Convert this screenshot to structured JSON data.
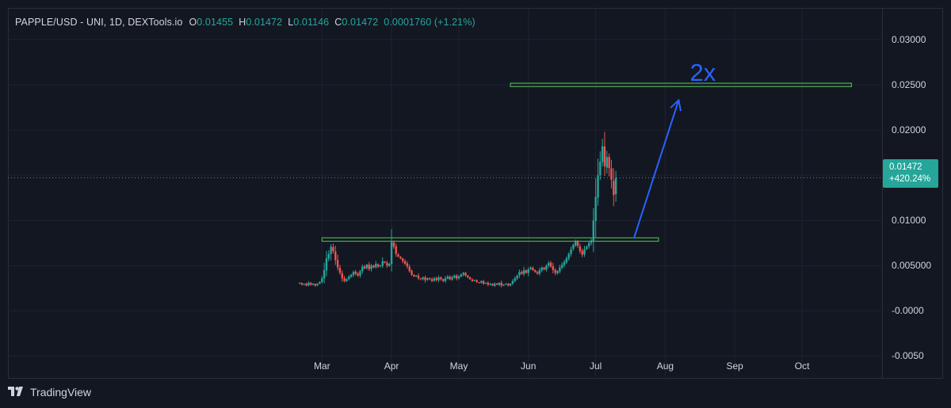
{
  "legend": {
    "symbol": "PAPPLE/USD - UNI, 1D, DEXTools.io",
    "open_label": "O",
    "open": "0.01455",
    "high_label": "H",
    "high": "0.01472",
    "low_label": "L",
    "low": "0.01146",
    "close_label": "C",
    "close": "0.01472",
    "change": "0.0001760 (+1.21%)"
  },
  "last_price": {
    "price": "0.01472",
    "change_pct": "+420.24%"
  },
  "annotation": {
    "text": "2x"
  },
  "footer": {
    "brand": "TradingView"
  },
  "colors": {
    "up": "#26a69a",
    "down": "#ef5350",
    "box": "#4caf50",
    "arrow": "#2962ff",
    "background": "#131722"
  },
  "chart_data": {
    "type": "candlestick",
    "y_ticks": [
      "0.03000",
      "0.02500",
      "0.02000",
      "0.01500",
      "0.01000",
      "0.005000",
      "-0.0000",
      "-0.0050"
    ],
    "y_tick_values": [
      0.03,
      0.025,
      0.02,
      0.015,
      0.01,
      0.005,
      0.0,
      -0.005
    ],
    "ylim": [
      -0.0075,
      0.0335
    ],
    "x_ticks": [
      "Mar",
      "Apr",
      "May",
      "Jun",
      "Jul",
      "Aug",
      "Sep",
      "Oct"
    ],
    "x_tick_days": [
      0,
      31,
      61,
      92,
      122,
      153,
      184,
      214
    ],
    "x_start_day": -10,
    "xlim_days": [
      -140,
      250
    ],
    "last_price_line": 0.01472,
    "resistance_zone": {
      "from_day": 0,
      "to_day": 150,
      "low": 0.0077,
      "high": 0.0079
    },
    "target_zone": {
      "from_day": 84,
      "to_day": 236,
      "low": 0.0248,
      "high": 0.025
    },
    "arrow": {
      "from": [
        139,
        0.008
      ],
      "to": [
        159,
        0.0233
      ]
    },
    "closes": [
      0.0031,
      0.0029,
      0.003,
      0.0028,
      0.0031,
      0.0029,
      0.003,
      0.0028,
      0.003,
      0.0032,
      0.0036,
      0.0045,
      0.0058,
      0.0063,
      0.0071,
      0.0066,
      0.0056,
      0.0048,
      0.0042,
      0.0036,
      0.0033,
      0.0035,
      0.0038,
      0.004,
      0.0043,
      0.0041,
      0.0039,
      0.0044,
      0.0049,
      0.0047,
      0.0051,
      0.0046,
      0.005,
      0.0048,
      0.0052,
      0.0049,
      0.005,
      0.0055,
      0.0053,
      0.005,
      0.0052,
      0.0076,
      0.0071,
      0.0063,
      0.006,
      0.0058,
      0.0055,
      0.0052,
      0.0049,
      0.0044,
      0.004,
      0.0038,
      0.0039,
      0.0036,
      0.0035,
      0.0037,
      0.0034,
      0.0036,
      0.0035,
      0.0033,
      0.0036,
      0.0034,
      0.0037,
      0.0035,
      0.0033,
      0.0036,
      0.0038,
      0.0035,
      0.0037,
      0.0039,
      0.0036,
      0.0038,
      0.004,
      0.0042,
      0.0039,
      0.0037,
      0.0035,
      0.0033,
      0.0034,
      0.0032,
      0.0031,
      0.0033,
      0.003,
      0.0031,
      0.0029,
      0.003,
      0.0028,
      0.003,
      0.0029,
      0.0031,
      0.0028,
      0.0029,
      0.003,
      0.0028,
      0.003,
      0.0033,
      0.0036,
      0.0039,
      0.0043,
      0.0041,
      0.0045,
      0.0042,
      0.0046,
      0.0048,
      0.0045,
      0.0043,
      0.0041,
      0.0045,
      0.0048,
      0.0046,
      0.005,
      0.0053,
      0.0049,
      0.0045,
      0.0042,
      0.0044,
      0.0048,
      0.0051,
      0.0054,
      0.0058,
      0.0063,
      0.0068,
      0.0073,
      0.0077,
      0.0072,
      0.0066,
      0.0062,
      0.0068,
      0.0071,
      0.0075,
      0.0078,
      0.01,
      0.0126,
      0.015,
      0.0165,
      0.0182,
      0.016,
      0.017,
      0.0158,
      0.0145,
      0.0128,
      0.0147
    ]
  }
}
